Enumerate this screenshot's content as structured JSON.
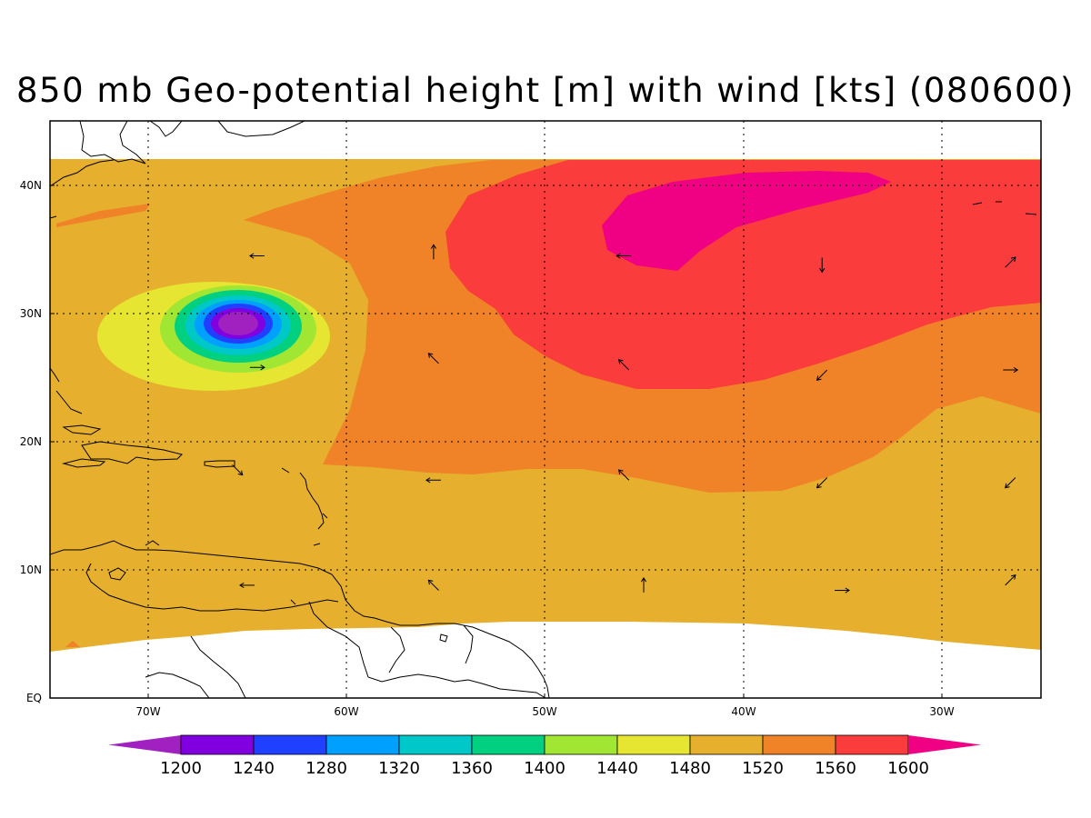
{
  "title": "850 mb Geo-potential height [m] with wind [kts] (080600)",
  "map": {
    "lon_labels": [
      "70W",
      "60W",
      "50W",
      "40W",
      "30W"
    ],
    "lat_labels": [
      "EQ",
      "10N",
      "20N",
      "30N",
      "40N"
    ],
    "lon_range": [
      -75,
      -25
    ],
    "lat_range": [
      0,
      45
    ],
    "gridlines": "dotted"
  },
  "colorbar": {
    "levels": [
      "1200",
      "1240",
      "1280",
      "1320",
      "1360",
      "1400",
      "1440",
      "1480",
      "1520",
      "1560",
      "1600"
    ],
    "colors": [
      "#a020c0",
      "#8000e0",
      "#2040ff",
      "#00a0ff",
      "#00c8c8",
      "#00d080",
      "#a0e632",
      "#e6e632",
      "#e6af2d",
      "#f08228",
      "#fa3c3c",
      "#f00082"
    ],
    "extends": "both"
  },
  "wind_vectors": [
    {
      "lon": -64.5,
      "lat": 34.5,
      "dir": "W"
    },
    {
      "lon": -64.5,
      "lat": 25.8,
      "dir": "E"
    },
    {
      "lon": -55.6,
      "lat": 34.8,
      "dir": "N"
    },
    {
      "lon": -55.6,
      "lat": 26.5,
      "dir": "NW"
    },
    {
      "lon": -55.6,
      "lat": 17.0,
      "dir": "W"
    },
    {
      "lon": -55.6,
      "lat": 8.8,
      "dir": "NW"
    },
    {
      "lon": -46.0,
      "lat": 34.5,
      "dir": "W"
    },
    {
      "lon": -46.0,
      "lat": 26.0,
      "dir": "NW"
    },
    {
      "lon": -46.0,
      "lat": 17.4,
      "dir": "NW"
    },
    {
      "lon": -45.0,
      "lat": 8.8,
      "dir": "N"
    },
    {
      "lon": -36.0,
      "lat": 33.8,
      "dir": "S"
    },
    {
      "lon": -36.0,
      "lat": 25.2,
      "dir": "SW"
    },
    {
      "lon": -36.0,
      "lat": 16.8,
      "dir": "SW"
    },
    {
      "lon": -35.0,
      "lat": 8.4,
      "dir": "E"
    },
    {
      "lon": -26.5,
      "lat": 34.0,
      "dir": "NE"
    },
    {
      "lon": -26.5,
      "lat": 25.6,
      "dir": "E"
    },
    {
      "lon": -26.5,
      "lat": 16.8,
      "dir": "SW"
    },
    {
      "lon": -26.5,
      "lat": 9.2,
      "dir": "NE"
    },
    {
      "lon": -65.0,
      "lat": 8.8,
      "dir": "W"
    },
    {
      "lon": -65.5,
      "lat": 17.8,
      "dir": "SE"
    }
  ]
}
